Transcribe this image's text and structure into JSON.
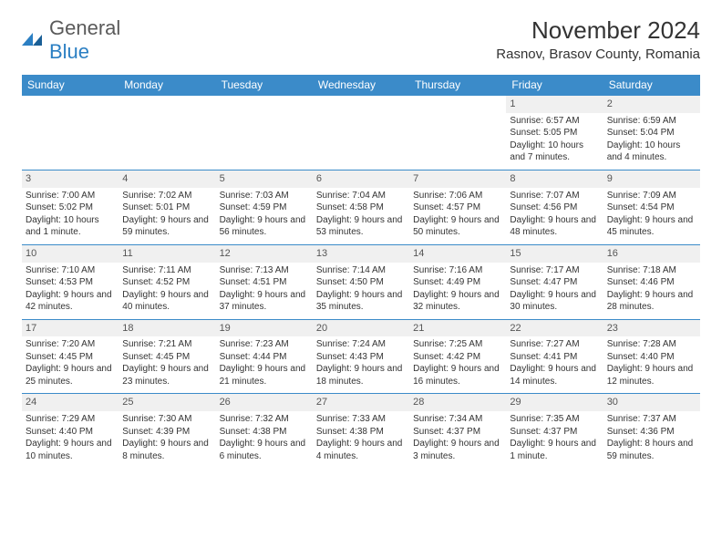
{
  "branding": {
    "logo_word1": "General",
    "logo_word2": "Blue"
  },
  "title": {
    "month": "November 2024",
    "location": "Rasnov, Brasov County, Romania"
  },
  "colors": {
    "header_bg": "#3b8bc9",
    "header_text": "#ffffff",
    "daynum_bg": "#f0f0f0",
    "border": "#3b8bc9",
    "text": "#333333",
    "logo_gray": "#5a5a5a",
    "logo_blue": "#2b7fc3"
  },
  "weekdays": [
    "Sunday",
    "Monday",
    "Tuesday",
    "Wednesday",
    "Thursday",
    "Friday",
    "Saturday"
  ],
  "weeks": [
    {
      "nums": [
        "",
        "",
        "",
        "",
        "",
        "1",
        "2"
      ],
      "cells": [
        "",
        "",
        "",
        "",
        "",
        "Sunrise: 6:57 AM|Sunset: 5:05 PM|Daylight: 10 hours and 7 minutes.",
        "Sunrise: 6:59 AM|Sunset: 5:04 PM|Daylight: 10 hours and 4 minutes."
      ]
    },
    {
      "nums": [
        "3",
        "4",
        "5",
        "6",
        "7",
        "8",
        "9"
      ],
      "cells": [
        "Sunrise: 7:00 AM|Sunset: 5:02 PM|Daylight: 10 hours and 1 minute.",
        "Sunrise: 7:02 AM|Sunset: 5:01 PM|Daylight: 9 hours and 59 minutes.",
        "Sunrise: 7:03 AM|Sunset: 4:59 PM|Daylight: 9 hours and 56 minutes.",
        "Sunrise: 7:04 AM|Sunset: 4:58 PM|Daylight: 9 hours and 53 minutes.",
        "Sunrise: 7:06 AM|Sunset: 4:57 PM|Daylight: 9 hours and 50 minutes.",
        "Sunrise: 7:07 AM|Sunset: 4:56 PM|Daylight: 9 hours and 48 minutes.",
        "Sunrise: 7:09 AM|Sunset: 4:54 PM|Daylight: 9 hours and 45 minutes."
      ]
    },
    {
      "nums": [
        "10",
        "11",
        "12",
        "13",
        "14",
        "15",
        "16"
      ],
      "cells": [
        "Sunrise: 7:10 AM|Sunset: 4:53 PM|Daylight: 9 hours and 42 minutes.",
        "Sunrise: 7:11 AM|Sunset: 4:52 PM|Daylight: 9 hours and 40 minutes.",
        "Sunrise: 7:13 AM|Sunset: 4:51 PM|Daylight: 9 hours and 37 minutes.",
        "Sunrise: 7:14 AM|Sunset: 4:50 PM|Daylight: 9 hours and 35 minutes.",
        "Sunrise: 7:16 AM|Sunset: 4:49 PM|Daylight: 9 hours and 32 minutes.",
        "Sunrise: 7:17 AM|Sunset: 4:47 PM|Daylight: 9 hours and 30 minutes.",
        "Sunrise: 7:18 AM|Sunset: 4:46 PM|Daylight: 9 hours and 28 minutes."
      ]
    },
    {
      "nums": [
        "17",
        "18",
        "19",
        "20",
        "21",
        "22",
        "23"
      ],
      "cells": [
        "Sunrise: 7:20 AM|Sunset: 4:45 PM|Daylight: 9 hours and 25 minutes.",
        "Sunrise: 7:21 AM|Sunset: 4:45 PM|Daylight: 9 hours and 23 minutes.",
        "Sunrise: 7:23 AM|Sunset: 4:44 PM|Daylight: 9 hours and 21 minutes.",
        "Sunrise: 7:24 AM|Sunset: 4:43 PM|Daylight: 9 hours and 18 minutes.",
        "Sunrise: 7:25 AM|Sunset: 4:42 PM|Daylight: 9 hours and 16 minutes.",
        "Sunrise: 7:27 AM|Sunset: 4:41 PM|Daylight: 9 hours and 14 minutes.",
        "Sunrise: 7:28 AM|Sunset: 4:40 PM|Daylight: 9 hours and 12 minutes."
      ]
    },
    {
      "nums": [
        "24",
        "25",
        "26",
        "27",
        "28",
        "29",
        "30"
      ],
      "cells": [
        "Sunrise: 7:29 AM|Sunset: 4:40 PM|Daylight: 9 hours and 10 minutes.",
        "Sunrise: 7:30 AM|Sunset: 4:39 PM|Daylight: 9 hours and 8 minutes.",
        "Sunrise: 7:32 AM|Sunset: 4:38 PM|Daylight: 9 hours and 6 minutes.",
        "Sunrise: 7:33 AM|Sunset: 4:38 PM|Daylight: 9 hours and 4 minutes.",
        "Sunrise: 7:34 AM|Sunset: 4:37 PM|Daylight: 9 hours and 3 minutes.",
        "Sunrise: 7:35 AM|Sunset: 4:37 PM|Daylight: 9 hours and 1 minute.",
        "Sunrise: 7:37 AM|Sunset: 4:36 PM|Daylight: 8 hours and 59 minutes."
      ]
    }
  ]
}
